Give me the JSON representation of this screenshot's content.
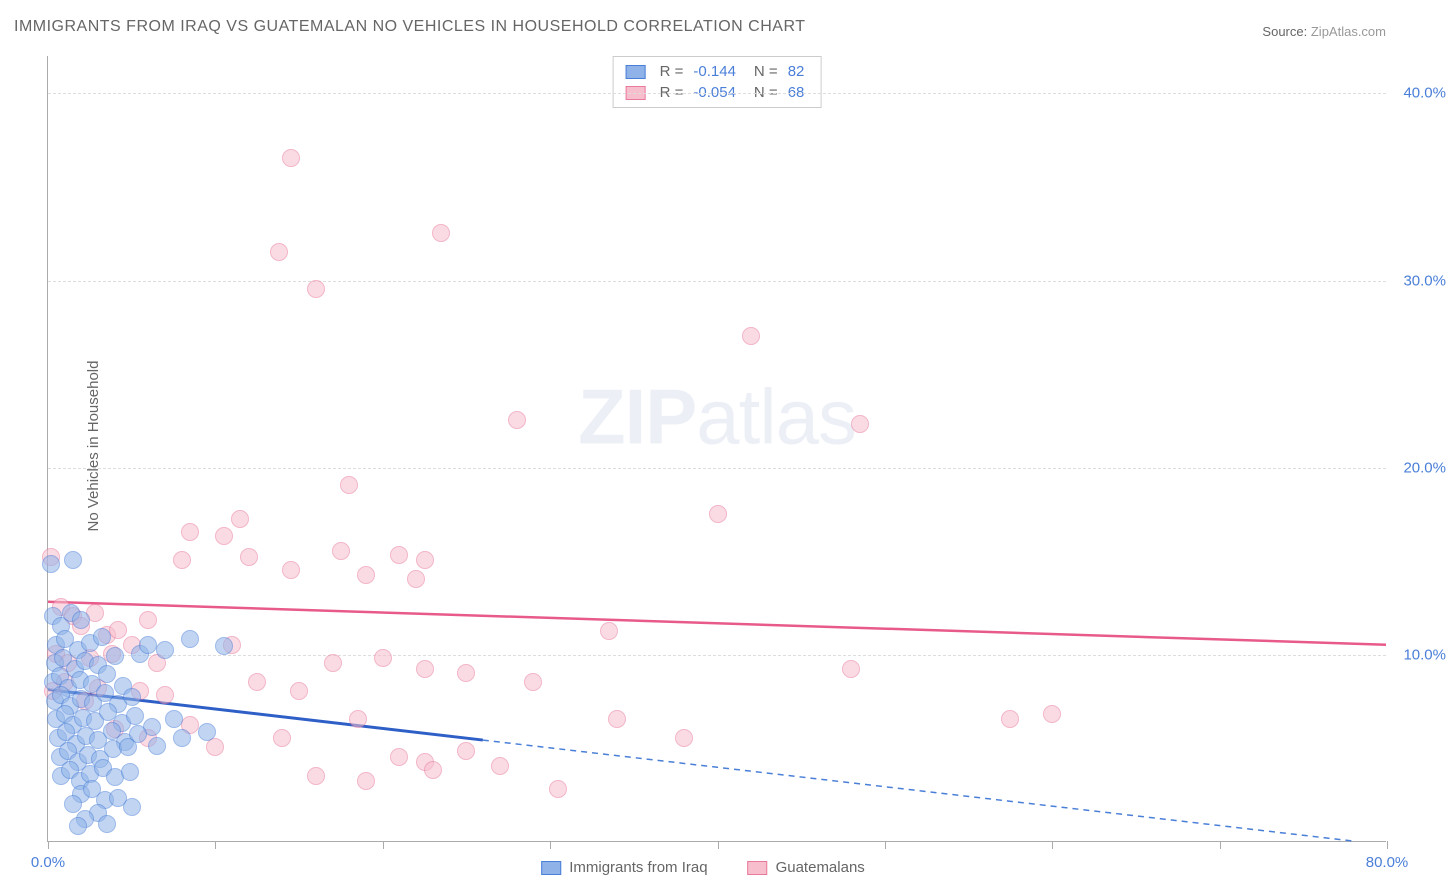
{
  "title": "IMMIGRANTS FROM IRAQ VS GUATEMALAN NO VEHICLES IN HOUSEHOLD CORRELATION CHART",
  "source_label": "Source:",
  "source_value": "ZipAtlas.com",
  "y_axis_label": "No Vehicles in Household",
  "watermark_bold": "ZIP",
  "watermark_rest": "atlas",
  "chart": {
    "type": "scatter",
    "xlim": [
      0,
      80
    ],
    "ylim": [
      0,
      42
    ],
    "x_ticks": [
      0,
      10,
      20,
      30,
      40,
      50,
      60,
      70,
      80
    ],
    "x_tick_labels": {
      "0": "0.0%",
      "80": "80.0%"
    },
    "y_ticks": [
      10,
      20,
      30,
      40
    ],
    "y_tick_labels": {
      "10": "10.0%",
      "20": "20.0%",
      "30": "30.0%",
      "40": "40.0%"
    },
    "grid_color": "#dddddd",
    "background_color": "#ffffff",
    "marker_radius": 9,
    "marker_opacity": 0.55,
    "series": [
      {
        "name": "Immigrants from Iraq",
        "color_fill": "#8fb3e8",
        "color_stroke": "#4a7fd8",
        "r_value": "-0.144",
        "n_value": "82",
        "trend": {
          "x1": 0,
          "y1": 8.1,
          "x2": 26,
          "y2": 5.4,
          "stroke": "#2e5fc7",
          "width": 3
        },
        "trend_dash": {
          "x1": 26,
          "y1": 5.4,
          "x2": 78,
          "y2": 0,
          "stroke": "#4a7fd8",
          "width": 1.5,
          "dash": "6,5"
        },
        "points": [
          [
            0.2,
            14.8
          ],
          [
            1.5,
            15.0
          ],
          [
            0.3,
            12.0
          ],
          [
            0.8,
            11.5
          ],
          [
            1.4,
            12.2
          ],
          [
            2.0,
            11.8
          ],
          [
            0.5,
            10.5
          ],
          [
            1.0,
            10.8
          ],
          [
            1.8,
            10.2
          ],
          [
            2.5,
            10.6
          ],
          [
            3.2,
            10.9
          ],
          [
            0.4,
            9.5
          ],
          [
            0.9,
            9.8
          ],
          [
            1.6,
            9.2
          ],
          [
            2.2,
            9.6
          ],
          [
            3.0,
            9.4
          ],
          [
            4.0,
            9.9
          ],
          [
            0.3,
            8.5
          ],
          [
            0.7,
            8.8
          ],
          [
            1.2,
            8.2
          ],
          [
            1.9,
            8.6
          ],
          [
            2.6,
            8.4
          ],
          [
            3.5,
            8.9
          ],
          [
            4.5,
            8.3
          ],
          [
            5.5,
            10.0
          ],
          [
            6.0,
            10.5
          ],
          [
            7.0,
            10.2
          ],
          [
            8.5,
            10.8
          ],
          [
            10.5,
            10.4
          ],
          [
            0.4,
            7.5
          ],
          [
            0.8,
            7.8
          ],
          [
            1.3,
            7.2
          ],
          [
            2.0,
            7.6
          ],
          [
            2.7,
            7.4
          ],
          [
            3.4,
            7.9
          ],
          [
            4.2,
            7.3
          ],
          [
            5.0,
            7.7
          ],
          [
            0.5,
            6.5
          ],
          [
            1.0,
            6.8
          ],
          [
            1.5,
            6.2
          ],
          [
            2.1,
            6.6
          ],
          [
            2.8,
            6.4
          ],
          [
            3.6,
            6.9
          ],
          [
            4.4,
            6.3
          ],
          [
            5.2,
            6.7
          ],
          [
            6.2,
            6.1
          ],
          [
            7.5,
            6.5
          ],
          [
            0.6,
            5.5
          ],
          [
            1.1,
            5.8
          ],
          [
            1.7,
            5.2
          ],
          [
            2.3,
            5.6
          ],
          [
            3.0,
            5.4
          ],
          [
            3.8,
            5.9
          ],
          [
            4.6,
            5.3
          ],
          [
            5.4,
            5.7
          ],
          [
            6.5,
            5.1
          ],
          [
            8.0,
            5.5
          ],
          [
            9.5,
            5.8
          ],
          [
            0.7,
            4.5
          ],
          [
            1.2,
            4.8
          ],
          [
            1.8,
            4.2
          ],
          [
            2.4,
            4.6
          ],
          [
            3.1,
            4.4
          ],
          [
            3.9,
            4.9
          ],
          [
            4.8,
            5.0
          ],
          [
            0.8,
            3.5
          ],
          [
            1.3,
            3.8
          ],
          [
            1.9,
            3.2
          ],
          [
            2.5,
            3.6
          ],
          [
            3.3,
            3.9
          ],
          [
            4.0,
            3.4
          ],
          [
            4.9,
            3.7
          ],
          [
            2.0,
            2.5
          ],
          [
            2.6,
            2.8
          ],
          [
            3.4,
            2.2
          ],
          [
            1.5,
            2.0
          ],
          [
            3.0,
            1.5
          ],
          [
            4.2,
            2.3
          ],
          [
            5.0,
            1.8
          ],
          [
            2.2,
            1.2
          ],
          [
            1.8,
            0.8
          ],
          [
            3.5,
            0.9
          ]
        ]
      },
      {
        "name": "Guatemalans",
        "color_fill": "#f7bfce",
        "color_stroke": "#e87a9c",
        "r_value": "-0.054",
        "n_value": "68",
        "trend": {
          "x1": 0,
          "y1": 12.8,
          "x2": 80,
          "y2": 10.5,
          "stroke": "#e85a8a",
          "width": 2.5
        },
        "points": [
          [
            0.2,
            15.2
          ],
          [
            14.5,
            36.5
          ],
          [
            13.8,
            31.5
          ],
          [
            16.0,
            29.5
          ],
          [
            23.5,
            32.5
          ],
          [
            42.0,
            27.0
          ],
          [
            28.0,
            22.5
          ],
          [
            48.5,
            22.3
          ],
          [
            18.0,
            19.0
          ],
          [
            11.5,
            17.2
          ],
          [
            40.0,
            17.5
          ],
          [
            8.5,
            16.5
          ],
          [
            10.5,
            16.3
          ],
          [
            8.0,
            15.0
          ],
          [
            12.0,
            15.2
          ],
          [
            17.5,
            15.5
          ],
          [
            21.0,
            15.3
          ],
          [
            22.5,
            15.0
          ],
          [
            14.5,
            14.5
          ],
          [
            19.0,
            14.2
          ],
          [
            22.0,
            14.0
          ],
          [
            33.5,
            11.2
          ],
          [
            0.8,
            12.5
          ],
          [
            1.5,
            12.0
          ],
          [
            2.0,
            11.5
          ],
          [
            2.8,
            12.2
          ],
          [
            3.5,
            11.0
          ],
          [
            6.0,
            11.8
          ],
          [
            4.2,
            11.3
          ],
          [
            5.0,
            10.5
          ],
          [
            0.5,
            10.0
          ],
          [
            1.2,
            9.5
          ],
          [
            2.5,
            9.8
          ],
          [
            3.8,
            10.0
          ],
          [
            6.5,
            9.5
          ],
          [
            11.0,
            10.5
          ],
          [
            17.0,
            9.5
          ],
          [
            20.0,
            9.8
          ],
          [
            22.5,
            9.2
          ],
          [
            25.0,
            9.0
          ],
          [
            48.0,
            9.2
          ],
          [
            0.3,
            8.0
          ],
          [
            1.0,
            8.5
          ],
          [
            2.2,
            7.5
          ],
          [
            3.0,
            8.2
          ],
          [
            5.5,
            8.0
          ],
          [
            7.0,
            7.8
          ],
          [
            12.5,
            8.5
          ],
          [
            15.0,
            8.0
          ],
          [
            29.0,
            8.5
          ],
          [
            18.5,
            6.5
          ],
          [
            34.0,
            6.5
          ],
          [
            38.0,
            5.5
          ],
          [
            57.5,
            6.5
          ],
          [
            60.0,
            6.8
          ],
          [
            4.0,
            6.0
          ],
          [
            6.0,
            5.5
          ],
          [
            8.5,
            6.2
          ],
          [
            10.0,
            5.0
          ],
          [
            14.0,
            5.5
          ],
          [
            21.0,
            4.5
          ],
          [
            22.5,
            4.2
          ],
          [
            25.0,
            4.8
          ],
          [
            27.0,
            4.0
          ],
          [
            30.5,
            2.8
          ],
          [
            16.0,
            3.5
          ],
          [
            19.0,
            3.2
          ],
          [
            23.0,
            3.8
          ]
        ]
      }
    ]
  },
  "legend_top": {
    "r_label": "R =",
    "n_label": "N ="
  },
  "legend_bottom": [
    {
      "label": "Immigrants from Iraq",
      "fill": "#8fb3e8",
      "stroke": "#4a7fd8"
    },
    {
      "label": "Guatemalans",
      "fill": "#f7bfce",
      "stroke": "#e87a9c"
    }
  ]
}
